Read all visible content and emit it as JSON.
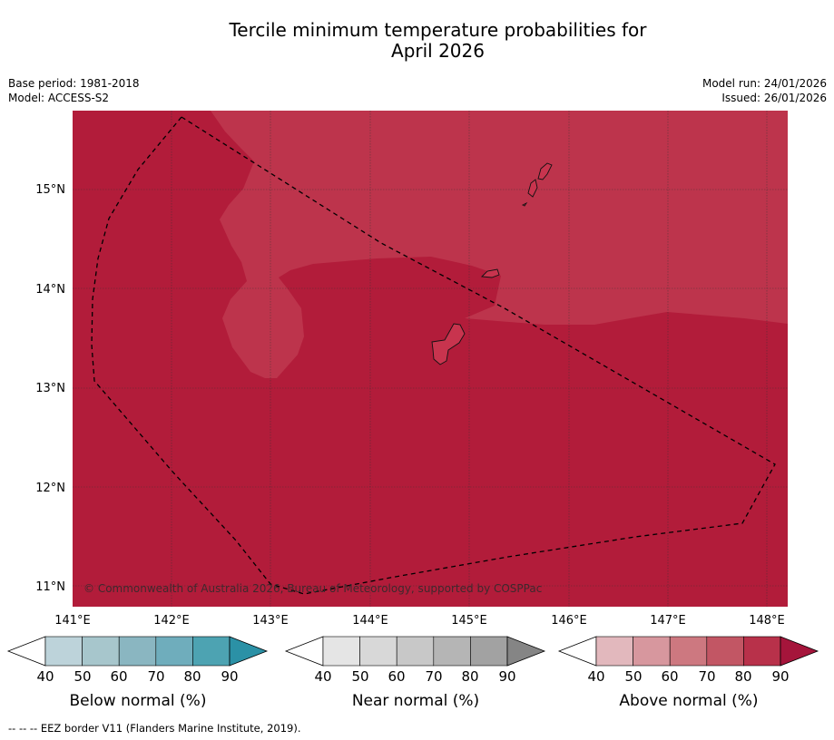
{
  "title": {
    "line1": "Tercile minimum temperature probabilities for",
    "line2": "April 2026"
  },
  "info_left": {
    "base_period": "Base period: 1981-2018",
    "model": "Model: ACCESS-S2"
  },
  "info_right": {
    "model_run": "Model run: 24/01/2026",
    "issued": "Issued: 26/01/2026"
  },
  "map": {
    "lat_labels": [
      "15°N",
      "14°N",
      "13°N",
      "12°N",
      "11°N"
    ],
    "lon_labels": [
      "141°E",
      "142°E",
      "143°E",
      "144°E",
      "145°E",
      "146°E",
      "147°E",
      "148°E"
    ],
    "copyright": "© Commonwealth of Australia 2026, Bureau of Meteorology, supported by COSPPac",
    "colors": {
      "above_80": "#b21c3a",
      "above_70_80": "#bd344c",
      "land": "#c8344e",
      "eez": "#000000"
    }
  },
  "legends": [
    {
      "label": "Below normal (%)",
      "ticks": [
        "40",
        "50",
        "60",
        "70",
        "80",
        "90"
      ],
      "colors": [
        "#ffffff",
        "#bdd3da",
        "#a7c6cc",
        "#8ab6c1",
        "#6fadbc",
        "#4da3b2",
        "#2b91a6"
      ]
    },
    {
      "label": "Near normal (%)",
      "ticks": [
        "40",
        "50",
        "60",
        "70",
        "80",
        "90"
      ],
      "colors": [
        "#ffffff",
        "#e5e5e5",
        "#d8d8d8",
        "#c8c8c8",
        "#b5b5b5",
        "#a2a2a2",
        "#858585"
      ]
    },
    {
      "label": "Above normal (%)",
      "ticks": [
        "40",
        "50",
        "60",
        "70",
        "80",
        "90"
      ],
      "colors": [
        "#ffffff",
        "#e2b8bd",
        "#d7979e",
        "#cd7880",
        "#c25664",
        "#b8314a",
        "#a5153b"
      ]
    }
  ],
  "footnote": "--  --  -- EEZ border V11 (Flanders Marine Institute, 2019)."
}
